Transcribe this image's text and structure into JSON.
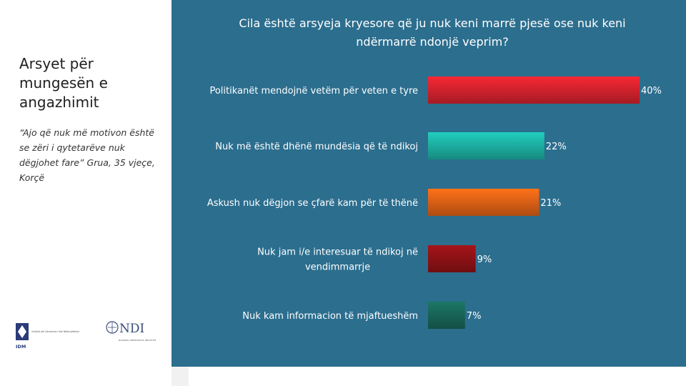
{
  "left": {
    "title": "Arsyet për mungesën e angazhimit",
    "quote": "“Ajo që nuk më motivon është se zëri i qytetarëve nuk dëgjohet fare” Grua, 35 vjeçe, Korçë"
  },
  "chart_data": {
    "type": "bar",
    "orientation": "horizontal",
    "title": "Cila është arsyeja kryesore që ju nuk keni marrë pjesë ose nuk keni ndërmarrë ndonjë veprim?",
    "categories": [
      "Politikanët mendojnë vetëm për veten e tyre",
      "Nuk më është dhënë mundësia që të ndikoj",
      "Askush nuk dëgjon se çfarë kam për të thënë",
      "Nuk jam i/e interesuar të ndikoj në vendimmarrje",
      "Nuk kam informacion të mjaftueshëm"
    ],
    "values": [
      40,
      22,
      21,
      9,
      7
    ],
    "value_labels": [
      "40%",
      "22%",
      "21%",
      "9%",
      "7%"
    ],
    "colors": [
      "#e52531",
      "#1fbfb1",
      "#f16a17",
      "#9a1318",
      "#1a6e5e"
    ],
    "xlim": [
      0,
      40
    ],
    "grid": false
  },
  "logos": {
    "idm_acronym": "IDM",
    "idm_text": "Instituti për Demokraci dhe Ndërmjetësim",
    "ndi_acronym": "NDI",
    "ndi_text": "NATIONAL DEMOCRATIC INSTITUTE"
  }
}
